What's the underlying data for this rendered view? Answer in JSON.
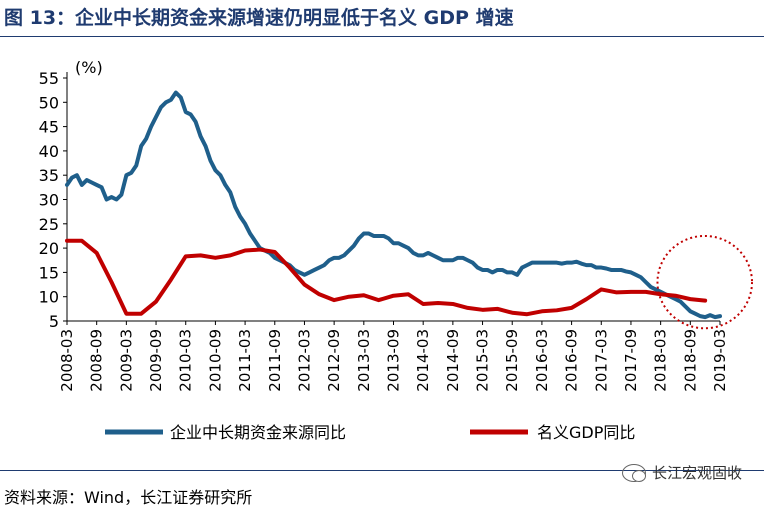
{
  "header": {
    "title": "图 13：企业中长期资金来源增速仍明显低于名义 GDP 增速"
  },
  "footer": {
    "source": "资料来源：Wind，长江证券研究所",
    "watermark": "长江宏观固收"
  },
  "colors": {
    "series1": "#1f5f8b",
    "series2": "#c00000",
    "title": "#1f3b70",
    "annotation": "#c00000"
  },
  "chart_data": {
    "type": "line",
    "unit_label": "(%)",
    "ylim": [
      5,
      55
    ],
    "yticks": [
      5,
      10,
      15,
      20,
      25,
      30,
      35,
      40,
      45,
      50,
      55
    ],
    "xlim": [
      "2008-03",
      "2019-03"
    ],
    "xticks": [
      "2008-03",
      "2008-09",
      "2009-03",
      "2009-09",
      "2010-03",
      "2010-09",
      "2011-03",
      "2011-09",
      "2012-03",
      "2012-09",
      "2013-03",
      "2013-09",
      "2014-03",
      "2014-09",
      "2015-03",
      "2015-09",
      "2016-03",
      "2016-09",
      "2017-03",
      "2017-09",
      "2018-03",
      "2018-09",
      "2019-03"
    ],
    "legend": "bottom",
    "annotation": "dotted ellipse around 2018-09 to 2019-03",
    "series": [
      {
        "name": "企业中长期资金来源同比",
        "points": [
          [
            "2008-03",
            33
          ],
          [
            "2008-04",
            34.5
          ],
          [
            "2008-05",
            35
          ],
          [
            "2008-06",
            33
          ],
          [
            "2008-07",
            34
          ],
          [
            "2008-08",
            33.5
          ],
          [
            "2008-09",
            33
          ],
          [
            "2008-10",
            32.5
          ],
          [
            "2008-11",
            30
          ],
          [
            "2008-12",
            30.5
          ],
          [
            "2009-01",
            30
          ],
          [
            "2009-02",
            31
          ],
          [
            "2009-03",
            35
          ],
          [
            "2009-04",
            35.5
          ],
          [
            "2009-05",
            37
          ],
          [
            "2009-06",
            41
          ],
          [
            "2009-07",
            42.5
          ],
          [
            "2009-08",
            45
          ],
          [
            "2009-09",
            47
          ],
          [
            "2009-10",
            49
          ],
          [
            "2009-11",
            50
          ],
          [
            "2009-12",
            50.5
          ],
          [
            "2010-01",
            52
          ],
          [
            "2010-02",
            51
          ],
          [
            "2010-03",
            48
          ],
          [
            "2010-04",
            47.5
          ],
          [
            "2010-05",
            46
          ],
          [
            "2010-06",
            43
          ],
          [
            "2010-07",
            41
          ],
          [
            "2010-08",
            38
          ],
          [
            "2010-09",
            36
          ],
          [
            "2010-10",
            35
          ],
          [
            "2010-11",
            33
          ],
          [
            "2010-12",
            31.5
          ],
          [
            "2011-01",
            28.5
          ],
          [
            "2011-02",
            26.5
          ],
          [
            "2011-03",
            25
          ],
          [
            "2011-04",
            23
          ],
          [
            "2011-05",
            21.5
          ],
          [
            "2011-06",
            20
          ],
          [
            "2011-07",
            19.5
          ],
          [
            "2011-08",
            19
          ],
          [
            "2011-09",
            18
          ],
          [
            "2011-10",
            17.5
          ],
          [
            "2011-11",
            17
          ],
          [
            "2011-12",
            16.5
          ],
          [
            "2012-01",
            15.5
          ],
          [
            "2012-02",
            15
          ],
          [
            "2012-03",
            14.5
          ],
          [
            "2012-04",
            15
          ],
          [
            "2012-05",
            15.5
          ],
          [
            "2012-06",
            16
          ],
          [
            "2012-07",
            16.5
          ],
          [
            "2012-08",
            17.5
          ],
          [
            "2012-09",
            18
          ],
          [
            "2012-10",
            18
          ],
          [
            "2012-11",
            18.5
          ],
          [
            "2012-12",
            19.5
          ],
          [
            "2013-01",
            20.5
          ],
          [
            "2013-02",
            22
          ],
          [
            "2013-03",
            23
          ],
          [
            "2013-04",
            23
          ],
          [
            "2013-05",
            22.5
          ],
          [
            "2013-06",
            22.5
          ],
          [
            "2013-07",
            22.5
          ],
          [
            "2013-08",
            22
          ],
          [
            "2013-09",
            21
          ],
          [
            "2013-10",
            21
          ],
          [
            "2013-11",
            20.5
          ],
          [
            "2013-12",
            20
          ],
          [
            "2014-01",
            19
          ],
          [
            "2014-02",
            18.5
          ],
          [
            "2014-03",
            18.5
          ],
          [
            "2014-04",
            19
          ],
          [
            "2014-05",
            18.5
          ],
          [
            "2014-06",
            18
          ],
          [
            "2014-07",
            17.5
          ],
          [
            "2014-08",
            17.5
          ],
          [
            "2014-09",
            17.5
          ],
          [
            "2014-10",
            18
          ],
          [
            "2014-11",
            18
          ],
          [
            "2014-12",
            17.5
          ],
          [
            "2015-01",
            17
          ],
          [
            "2015-02",
            16
          ],
          [
            "2015-03",
            15.5
          ],
          [
            "2015-04",
            15.5
          ],
          [
            "2015-05",
            15
          ],
          [
            "2015-06",
            15.5
          ],
          [
            "2015-07",
            15.5
          ],
          [
            "2015-08",
            15
          ],
          [
            "2015-09",
            15
          ],
          [
            "2015-10",
            14.5
          ],
          [
            "2015-11",
            16
          ],
          [
            "2015-12",
            16.5
          ],
          [
            "2016-01",
            17
          ],
          [
            "2016-02",
            17
          ],
          [
            "2016-03",
            17
          ],
          [
            "2016-04",
            17
          ],
          [
            "2016-05",
            17
          ],
          [
            "2016-06",
            17
          ],
          [
            "2016-07",
            16.8
          ],
          [
            "2016-08",
            17
          ],
          [
            "2016-09",
            17
          ],
          [
            "2016-10",
            17.2
          ],
          [
            "2016-11",
            16.8
          ],
          [
            "2016-12",
            16.5
          ],
          [
            "2017-01",
            16.5
          ],
          [
            "2017-02",
            16
          ],
          [
            "2017-03",
            16
          ],
          [
            "2017-04",
            15.8
          ],
          [
            "2017-05",
            15.5
          ],
          [
            "2017-06",
            15.5
          ],
          [
            "2017-07",
            15.5
          ],
          [
            "2017-08",
            15.2
          ],
          [
            "2017-09",
            15
          ],
          [
            "2017-10",
            14.5
          ],
          [
            "2017-11",
            14
          ],
          [
            "2017-12",
            13
          ],
          [
            "2018-01",
            12
          ],
          [
            "2018-02",
            11.5
          ],
          [
            "2018-03",
            11
          ],
          [
            "2018-04",
            10.5
          ],
          [
            "2018-05",
            10
          ],
          [
            "2018-06",
            9.5
          ],
          [
            "2018-07",
            9
          ],
          [
            "2018-08",
            8
          ],
          [
            "2018-09",
            7
          ],
          [
            "2018-10",
            6.5
          ],
          [
            "2018-11",
            6
          ],
          [
            "2018-12",
            5.8
          ],
          [
            "2019-01",
            6.2
          ],
          [
            "2019-02",
            5.8
          ],
          [
            "2019-03",
            6
          ]
        ]
      },
      {
        "name": "名义GDP同比",
        "points": [
          [
            "2008-03",
            21.5
          ],
          [
            "2008-06",
            21.5
          ],
          [
            "2008-09",
            19
          ],
          [
            "2008-12",
            13
          ],
          [
            "2009-03",
            6.5
          ],
          [
            "2009-06",
            6.5
          ],
          [
            "2009-09",
            9
          ],
          [
            "2009-12",
            13.5
          ],
          [
            "2010-03",
            18.3
          ],
          [
            "2010-06",
            18.5
          ],
          [
            "2010-09",
            18
          ],
          [
            "2010-12",
            18.5
          ],
          [
            "2011-03",
            19.5
          ],
          [
            "2011-06",
            19.7
          ],
          [
            "2011-09",
            19.2
          ],
          [
            "2011-12",
            16
          ],
          [
            "2012-03",
            12.5
          ],
          [
            "2012-06",
            10.5
          ],
          [
            "2012-09",
            9.3
          ],
          [
            "2012-12",
            10
          ],
          [
            "2013-03",
            10.3
          ],
          [
            "2013-06",
            9.3
          ],
          [
            "2013-09",
            10.2
          ],
          [
            "2013-12",
            10.5
          ],
          [
            "2014-03",
            8.5
          ],
          [
            "2014-06",
            8.7
          ],
          [
            "2014-09",
            8.5
          ],
          [
            "2014-12",
            7.7
          ],
          [
            "2015-03",
            7.3
          ],
          [
            "2015-06",
            7.5
          ],
          [
            "2015-09",
            6.7
          ],
          [
            "2015-12",
            6.4
          ],
          [
            "2016-03",
            7
          ],
          [
            "2016-06",
            7.2
          ],
          [
            "2016-09",
            7.7
          ],
          [
            "2016-12",
            9.5
          ],
          [
            "2017-03",
            11.5
          ],
          [
            "2017-06",
            10.9
          ],
          [
            "2017-09",
            11
          ],
          [
            "2017-12",
            11
          ],
          [
            "2018-03",
            10.5
          ],
          [
            "2018-06",
            10.2
          ],
          [
            "2018-09",
            9.5
          ],
          [
            "2018-12",
            9.2
          ]
        ]
      }
    ]
  }
}
